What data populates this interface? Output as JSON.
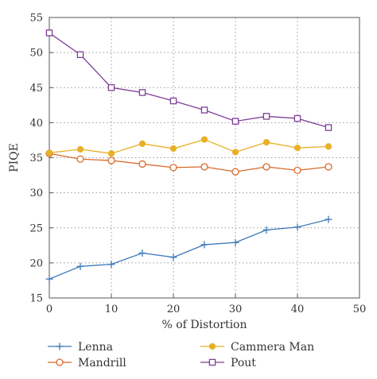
{
  "chart_data": {
    "type": "line",
    "xlabel": "% of Distortion",
    "ylabel": "PIQE",
    "xlim": [
      0,
      50
    ],
    "ylim": [
      15,
      55
    ],
    "xticks": [
      0,
      10,
      20,
      30,
      40,
      50
    ],
    "yticks": [
      15,
      20,
      25,
      30,
      35,
      40,
      45,
      50,
      55
    ],
    "grid": "dotted",
    "legend_position": "bottom",
    "x": [
      0,
      5,
      10,
      15,
      20,
      25,
      30,
      35,
      40,
      45
    ],
    "series": [
      {
        "name": "Lenna",
        "color": "#3b78b8",
        "marker": "plus",
        "values": [
          17.7,
          19.5,
          19.8,
          21.4,
          20.8,
          22.6,
          22.9,
          24.7,
          25.1,
          26.2
        ]
      },
      {
        "name": "Mandrill",
        "color": "#d9692a",
        "marker": "circle-open",
        "values": [
          35.6,
          34.8,
          34.6,
          34.1,
          33.6,
          33.7,
          33.0,
          33.7,
          33.2,
          33.7
        ]
      },
      {
        "name": "Cammera Man",
        "color": "#e8b025",
        "marker": "circle-filled",
        "values": [
          35.7,
          36.2,
          35.6,
          37.0,
          36.3,
          37.6,
          35.8,
          37.2,
          36.4,
          36.6
        ]
      },
      {
        "name": "Pout",
        "color": "#7e3f98",
        "marker": "square-open",
        "values": [
          52.8,
          49.7,
          45.0,
          44.3,
          43.1,
          41.8,
          40.2,
          40.9,
          40.6,
          39.3
        ]
      }
    ]
  }
}
